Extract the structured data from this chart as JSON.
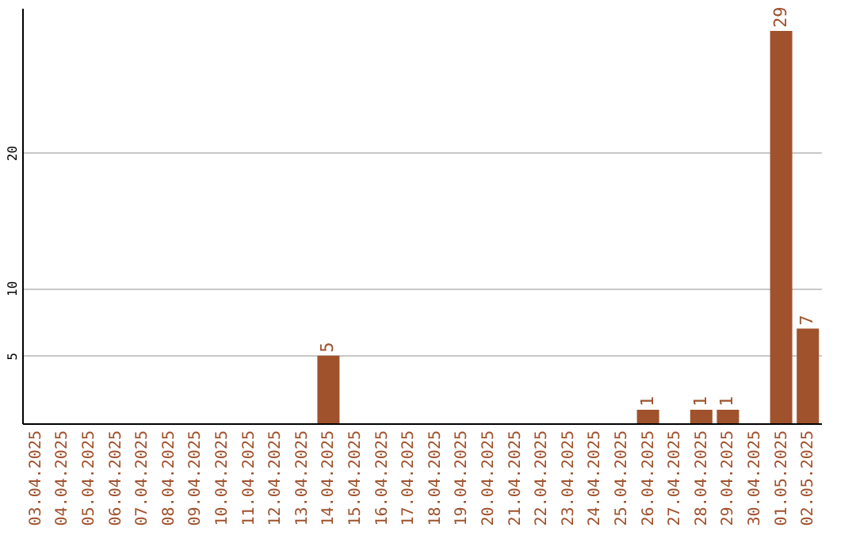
{
  "chart_data": {
    "type": "bar",
    "categories": [
      "03.04.2025",
      "04.04.2025",
      "05.04.2025",
      "06.04.2025",
      "07.04.2025",
      "08.04.2025",
      "09.04.2025",
      "10.04.2025",
      "11.04.2025",
      "12.04.2025",
      "13.04.2025",
      "14.04.2025",
      "15.04.2025",
      "16.04.2025",
      "17.04.2025",
      "18.04.2025",
      "19.04.2025",
      "20.04.2025",
      "21.04.2025",
      "22.04.2025",
      "23.04.2025",
      "24.04.2025",
      "25.04.2025",
      "26.04.2025",
      "27.04.2025",
      "28.04.2025",
      "29.04.2025",
      "30.04.2025",
      "01.05.2025",
      "02.05.2025"
    ],
    "values": [
      0,
      0,
      0,
      0,
      0,
      0,
      0,
      0,
      0,
      0,
      0,
      5,
      0,
      0,
      0,
      0,
      0,
      0,
      0,
      0,
      0,
      0,
      0,
      1,
      0,
      1,
      1,
      0,
      29,
      7
    ],
    "value_labels": [
      null,
      null,
      null,
      null,
      null,
      null,
      null,
      null,
      null,
      null,
      null,
      "5",
      null,
      null,
      null,
      null,
      null,
      null,
      null,
      null,
      null,
      null,
      null,
      "1",
      null,
      "1",
      "1",
      null,
      "29",
      "7"
    ],
    "color": "#a0522d",
    "ylim": [
      0,
      30.7
    ],
    "yticks": [
      5,
      10,
      20
    ],
    "grid": "y"
  }
}
